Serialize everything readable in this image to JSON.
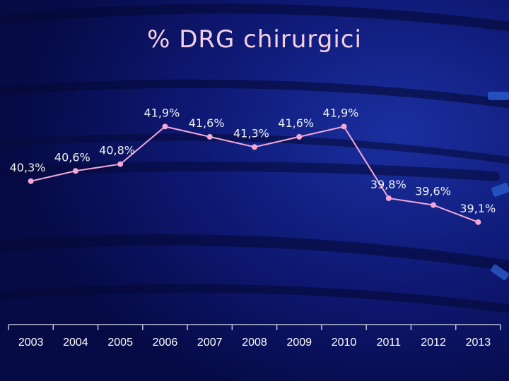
{
  "slide": {
    "title": "% DRG chirurgici"
  },
  "colors": {
    "background": "#0a0f5e",
    "line": "#f3a9d6",
    "title": "#f4d0e4",
    "axis": "#bfc3d8"
  },
  "chart_data": {
    "type": "line",
    "title": "% DRG chirurgici",
    "xlabel": "",
    "ylabel": "",
    "categories": [
      "2003",
      "2004",
      "2005",
      "2006",
      "2007",
      "2008",
      "2009",
      "2010",
      "2011",
      "2012",
      "2013"
    ],
    "series": [
      {
        "values": [
          40.3,
          40.6,
          40.8,
          41.9,
          41.6,
          41.3,
          41.6,
          41.9,
          39.8,
          39.6,
          39.1
        ],
        "labels": [
          "40,3%",
          "40,6%",
          "40,8%",
          "41,9%",
          "41,6%",
          "41,3%",
          "41,6%",
          "41,9%",
          "39,8%",
          "39,6%",
          "39,1%"
        ]
      }
    ],
    "ylim": [
      36.1,
      42.3
    ],
    "grid": false,
    "legend": "none",
    "y_axis_visible": false
  }
}
